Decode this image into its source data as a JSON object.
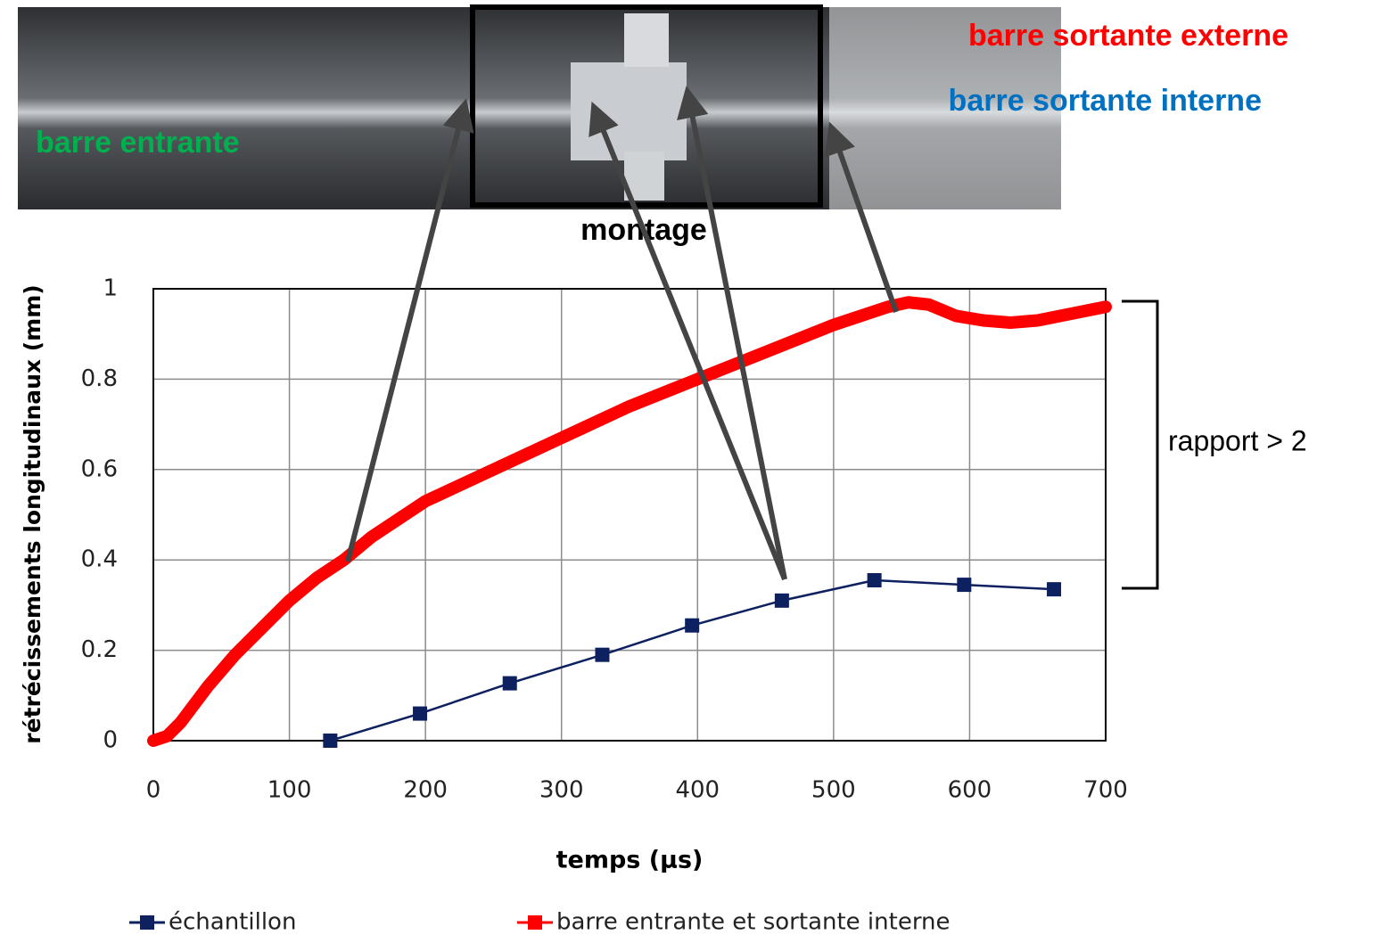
{
  "annotations": {
    "outgoing_external": "barre sortante externe",
    "outgoing_internal": "barre sortante interne",
    "incoming": "barre entrante",
    "setup": "montage",
    "ratio": "rapport > 2"
  },
  "chart_data": {
    "type": "line",
    "xlabel": "temps (µs)",
    "ylabel": "rétrécissements longitudinaux (mm)",
    "xlim": [
      0,
      700
    ],
    "xticks": [
      0,
      100,
      200,
      300,
      400,
      500,
      600,
      700
    ],
    "ylim": [
      0,
      1
    ],
    "yticks": [
      0,
      0.2,
      0.4,
      0.6,
      0.8,
      1
    ],
    "grid": true,
    "series": [
      {
        "name": "échantillon",
        "color": "#0d2060",
        "marker": "square",
        "x": [
          130,
          196,
          262,
          330,
          396,
          462,
          530,
          596,
          662
        ],
        "values": [
          0,
          0.06,
          0.127,
          0.19,
          0.255,
          0.31,
          0.355,
          0.345,
          0.335
        ]
      },
      {
        "name": "barre entrante et sortante interne",
        "color": "#ff0000",
        "marker": "square",
        "x": [
          0,
          10,
          20,
          40,
          60,
          80,
          100,
          120,
          140,
          160,
          180,
          200,
          250,
          300,
          350,
          400,
          450,
          500,
          540,
          555,
          570,
          590,
          610,
          630,
          650,
          700
        ],
        "values": [
          0,
          0.01,
          0.04,
          0.12,
          0.19,
          0.25,
          0.31,
          0.36,
          0.4,
          0.45,
          0.49,
          0.53,
          0.6,
          0.67,
          0.74,
          0.8,
          0.86,
          0.92,
          0.96,
          0.97,
          0.965,
          0.94,
          0.93,
          0.925,
          0.93,
          0.96
        ]
      }
    ]
  }
}
